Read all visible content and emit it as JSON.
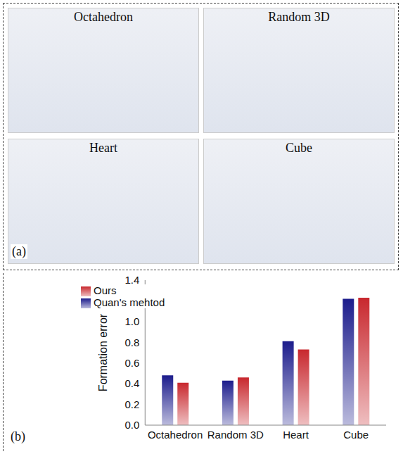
{
  "panel_a": {
    "label": "(a)",
    "titles": [
      "Octahedron",
      "Random 3D",
      "Heart",
      "Cube"
    ]
  },
  "chart_data": {
    "type": "bar",
    "annotations": [
      "(b)"
    ],
    "y_label": "Formation error",
    "categories": [
      "Octahedron",
      "Random 3D",
      "Heart",
      "Cube"
    ],
    "series": [
      {
        "name": "Quan's mehtod",
        "color": "#1c1c8c",
        "values": [
          0.48,
          0.43,
          0.81,
          1.22
        ]
      },
      {
        "name": "Ours",
        "color": "#c8282e",
        "values": [
          0.41,
          0.46,
          0.73,
          1.23
        ]
      }
    ],
    "ylim": [
      0,
      1.4
    ],
    "yticks": [
      {
        "value": 0,
        "label": "0.0"
      },
      0.2,
      0.4,
      0.6,
      0.8,
      {
        "value": 1,
        "label": "1.0"
      },
      1.2,
      1.4
    ],
    "grid": false,
    "legend": "upper left"
  }
}
